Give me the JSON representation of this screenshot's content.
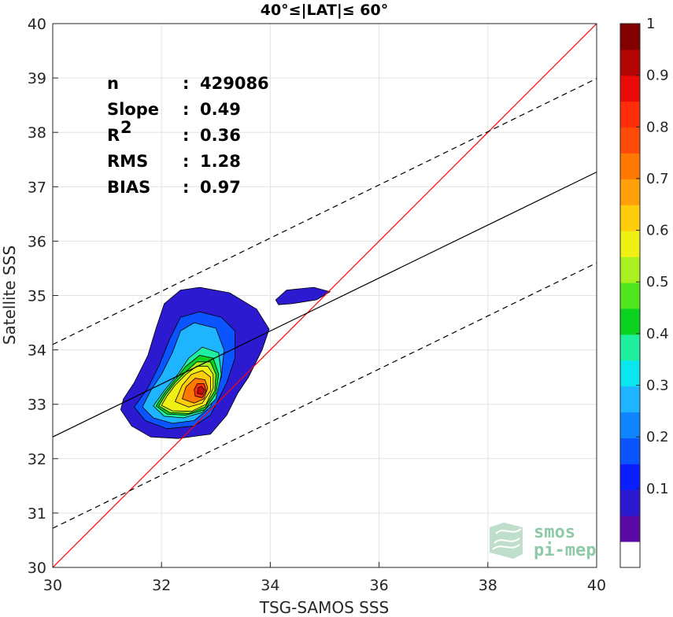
{
  "chart_data": {
    "type": "contour",
    "title": "40°≤|LAT|≤ 60°",
    "xlabel": "TSG-SAMOS SSS",
    "ylabel": "Satellite SSS",
    "xlim": [
      30,
      40
    ],
    "ylim": [
      30,
      40
    ],
    "x_ticks": [
      "30",
      "32",
      "34",
      "36",
      "38",
      "40"
    ],
    "y_ticks": [
      "30",
      "31",
      "32",
      "33",
      "34",
      "35",
      "36",
      "37",
      "38",
      "39",
      "40"
    ],
    "grid": true,
    "stats": [
      {
        "label": "n",
        "sep": ": ",
        "value": "429086"
      },
      {
        "label": "Slope",
        "sep": ": ",
        "value": "0.49"
      },
      {
        "label": "R",
        "sup": "2",
        "sep": ": ",
        "value": "0.36"
      },
      {
        "label": "RMS",
        "sep": ": ",
        "value": "1.28"
      },
      {
        "label": "BIAS",
        "sep": ": ",
        "value": "0.97"
      }
    ],
    "lines": {
      "identity": {
        "x": [
          30,
          40
        ],
        "y": [
          30,
          40
        ],
        "color": "#ff0000"
      },
      "fit": {
        "x": [
          30,
          40
        ],
        "y": [
          32.4,
          37.27
        ],
        "color": "#000000"
      },
      "upper_bound": {
        "x": [
          30,
          40
        ],
        "y": [
          34.1,
          38.99
        ],
        "color": "#000000",
        "dash": true
      },
      "lower_bound": {
        "x": [
          30,
          40
        ],
        "y": [
          30.72,
          35.6
        ],
        "color": "#000000",
        "dash": true
      }
    },
    "colorbar": {
      "ticks": [
        "0.1",
        "0.2",
        "0.3",
        "0.4",
        "0.5",
        "0.6",
        "0.7",
        "0.8",
        "0.9",
        "1"
      ],
      "colors": [
        "#ffffff",
        "#5a0aa5",
        "#2b1ad0",
        "#0a1fff",
        "#0a55ff",
        "#0f86ff",
        "#1eb4ff",
        "#0ae6f0",
        "#1ef0a0",
        "#0ad21e",
        "#50e61e",
        "#aaf01e",
        "#f0f014",
        "#ffcd0a",
        "#ffa00a",
        "#ff7800",
        "#ff4b0a",
        "#ff2d0a",
        "#eb0a0a",
        "#b40505",
        "#820000"
      ]
    },
    "contours": [
      {
        "level": 0.1,
        "color": "#2b1ad0",
        "points": [
          [
            31.25,
            32.9
          ],
          [
            31.45,
            32.6
          ],
          [
            31.8,
            32.4
          ],
          [
            32.3,
            32.37
          ],
          [
            32.9,
            32.45
          ],
          [
            33.2,
            32.8
          ],
          [
            33.4,
            33.2
          ],
          [
            33.6,
            33.5
          ],
          [
            33.85,
            34.0
          ],
          [
            33.98,
            34.38
          ],
          [
            33.75,
            34.75
          ],
          [
            33.25,
            35.05
          ],
          [
            32.7,
            35.15
          ],
          [
            32.35,
            35.1
          ],
          [
            32.05,
            34.85
          ],
          [
            31.9,
            34.4
          ],
          [
            31.75,
            33.9
          ],
          [
            31.5,
            33.4
          ],
          [
            31.3,
            33.1
          ]
        ]
      },
      {
        "level": 0.1,
        "color": "#2b1ad0",
        "points": [
          [
            34.1,
            34.92
          ],
          [
            34.3,
            35.1
          ],
          [
            34.8,
            35.15
          ],
          [
            35.1,
            35.07
          ],
          [
            34.85,
            34.92
          ],
          [
            34.4,
            34.85
          ],
          [
            34.15,
            34.83
          ]
        ]
      },
      {
        "level": 0.25,
        "color": "#0a55ff",
        "points": [
          [
            31.5,
            32.95
          ],
          [
            31.7,
            32.7
          ],
          [
            32.1,
            32.55
          ],
          [
            32.6,
            32.6
          ],
          [
            32.9,
            32.8
          ],
          [
            33.2,
            33.4
          ],
          [
            33.35,
            33.85
          ],
          [
            33.35,
            34.35
          ],
          [
            33.1,
            34.6
          ],
          [
            32.7,
            34.7
          ],
          [
            32.35,
            34.6
          ],
          [
            32.15,
            34.2
          ],
          [
            31.95,
            33.7
          ],
          [
            31.75,
            33.3
          ]
        ]
      },
      {
        "level": 0.3,
        "color": "#1eb4ff",
        "points": [
          [
            31.65,
            32.95
          ],
          [
            31.85,
            32.75
          ],
          [
            32.2,
            32.65
          ],
          [
            32.6,
            32.7
          ],
          [
            32.9,
            32.95
          ],
          [
            33.1,
            33.5
          ],
          [
            33.15,
            34.0
          ],
          [
            33.0,
            34.4
          ],
          [
            32.6,
            34.5
          ],
          [
            32.35,
            34.35
          ],
          [
            32.2,
            33.95
          ],
          [
            32.0,
            33.55
          ],
          [
            31.8,
            33.25
          ]
        ]
      },
      {
        "level": 0.45,
        "color": "#1ef0a0",
        "points": [
          [
            31.85,
            32.97
          ],
          [
            32.05,
            32.78
          ],
          [
            32.4,
            32.75
          ],
          [
            32.75,
            32.85
          ],
          [
            33.0,
            33.1
          ],
          [
            33.1,
            33.55
          ],
          [
            33.05,
            33.95
          ],
          [
            32.75,
            34.05
          ],
          [
            32.5,
            33.85
          ],
          [
            32.3,
            33.55
          ],
          [
            32.05,
            33.25
          ]
        ]
      },
      {
        "level": 0.55,
        "color": "#0ad21e",
        "points": [
          [
            31.9,
            32.97
          ],
          [
            32.1,
            32.82
          ],
          [
            32.45,
            32.8
          ],
          [
            32.8,
            32.9
          ],
          [
            33.0,
            33.2
          ],
          [
            33.05,
            33.55
          ],
          [
            32.95,
            33.85
          ],
          [
            32.7,
            33.9
          ],
          [
            32.45,
            33.7
          ],
          [
            32.25,
            33.45
          ],
          [
            32.05,
            33.2
          ]
        ]
      },
      {
        "level": 0.6,
        "color": "#aaf01e",
        "points": [
          [
            31.95,
            32.97
          ],
          [
            32.15,
            32.85
          ],
          [
            32.5,
            32.83
          ],
          [
            32.8,
            32.95
          ],
          [
            32.98,
            33.25
          ],
          [
            33.0,
            33.55
          ],
          [
            32.9,
            33.78
          ],
          [
            32.65,
            33.78
          ],
          [
            32.45,
            33.6
          ],
          [
            32.25,
            33.4
          ],
          [
            32.08,
            33.18
          ]
        ]
      },
      {
        "level": 0.65,
        "color": "#f0f014",
        "points": [
          [
            32.0,
            32.98
          ],
          [
            32.2,
            32.88
          ],
          [
            32.55,
            32.87
          ],
          [
            32.82,
            33.0
          ],
          [
            32.95,
            33.3
          ],
          [
            32.95,
            33.55
          ],
          [
            32.85,
            33.7
          ],
          [
            32.65,
            33.7
          ],
          [
            32.45,
            33.55
          ],
          [
            32.25,
            33.35
          ],
          [
            32.1,
            33.15
          ]
        ]
      },
      {
        "level": 0.7,
        "color": "#ffcd0a",
        "points": [
          [
            32.25,
            33.05
          ],
          [
            32.5,
            32.95
          ],
          [
            32.75,
            33.02
          ],
          [
            32.9,
            33.25
          ],
          [
            32.9,
            33.5
          ],
          [
            32.75,
            33.62
          ],
          [
            32.55,
            33.55
          ],
          [
            32.38,
            33.35
          ]
        ]
      },
      {
        "level": 0.8,
        "color": "#ff7800",
        "points": [
          [
            32.38,
            33.1
          ],
          [
            32.6,
            33.02
          ],
          [
            32.78,
            33.1
          ],
          [
            32.85,
            33.3
          ],
          [
            32.8,
            33.45
          ],
          [
            32.62,
            33.48
          ],
          [
            32.45,
            33.32
          ]
        ]
      },
      {
        "level": 0.9,
        "color": "#ff2d0a",
        "points": [
          [
            32.62,
            33.15
          ],
          [
            32.75,
            33.12
          ],
          [
            32.82,
            33.25
          ],
          [
            32.78,
            33.38
          ],
          [
            32.66,
            33.38
          ],
          [
            32.6,
            33.27
          ]
        ]
      },
      {
        "level": 1.0,
        "color": "#c80a0a",
        "points": [
          [
            32.66,
            33.2
          ],
          [
            32.75,
            33.18
          ],
          [
            32.79,
            33.27
          ],
          [
            32.73,
            33.33
          ],
          [
            32.67,
            33.3
          ]
        ]
      }
    ]
  },
  "logo": {
    "line1": "smos",
    "line2": "pi-mep"
  }
}
